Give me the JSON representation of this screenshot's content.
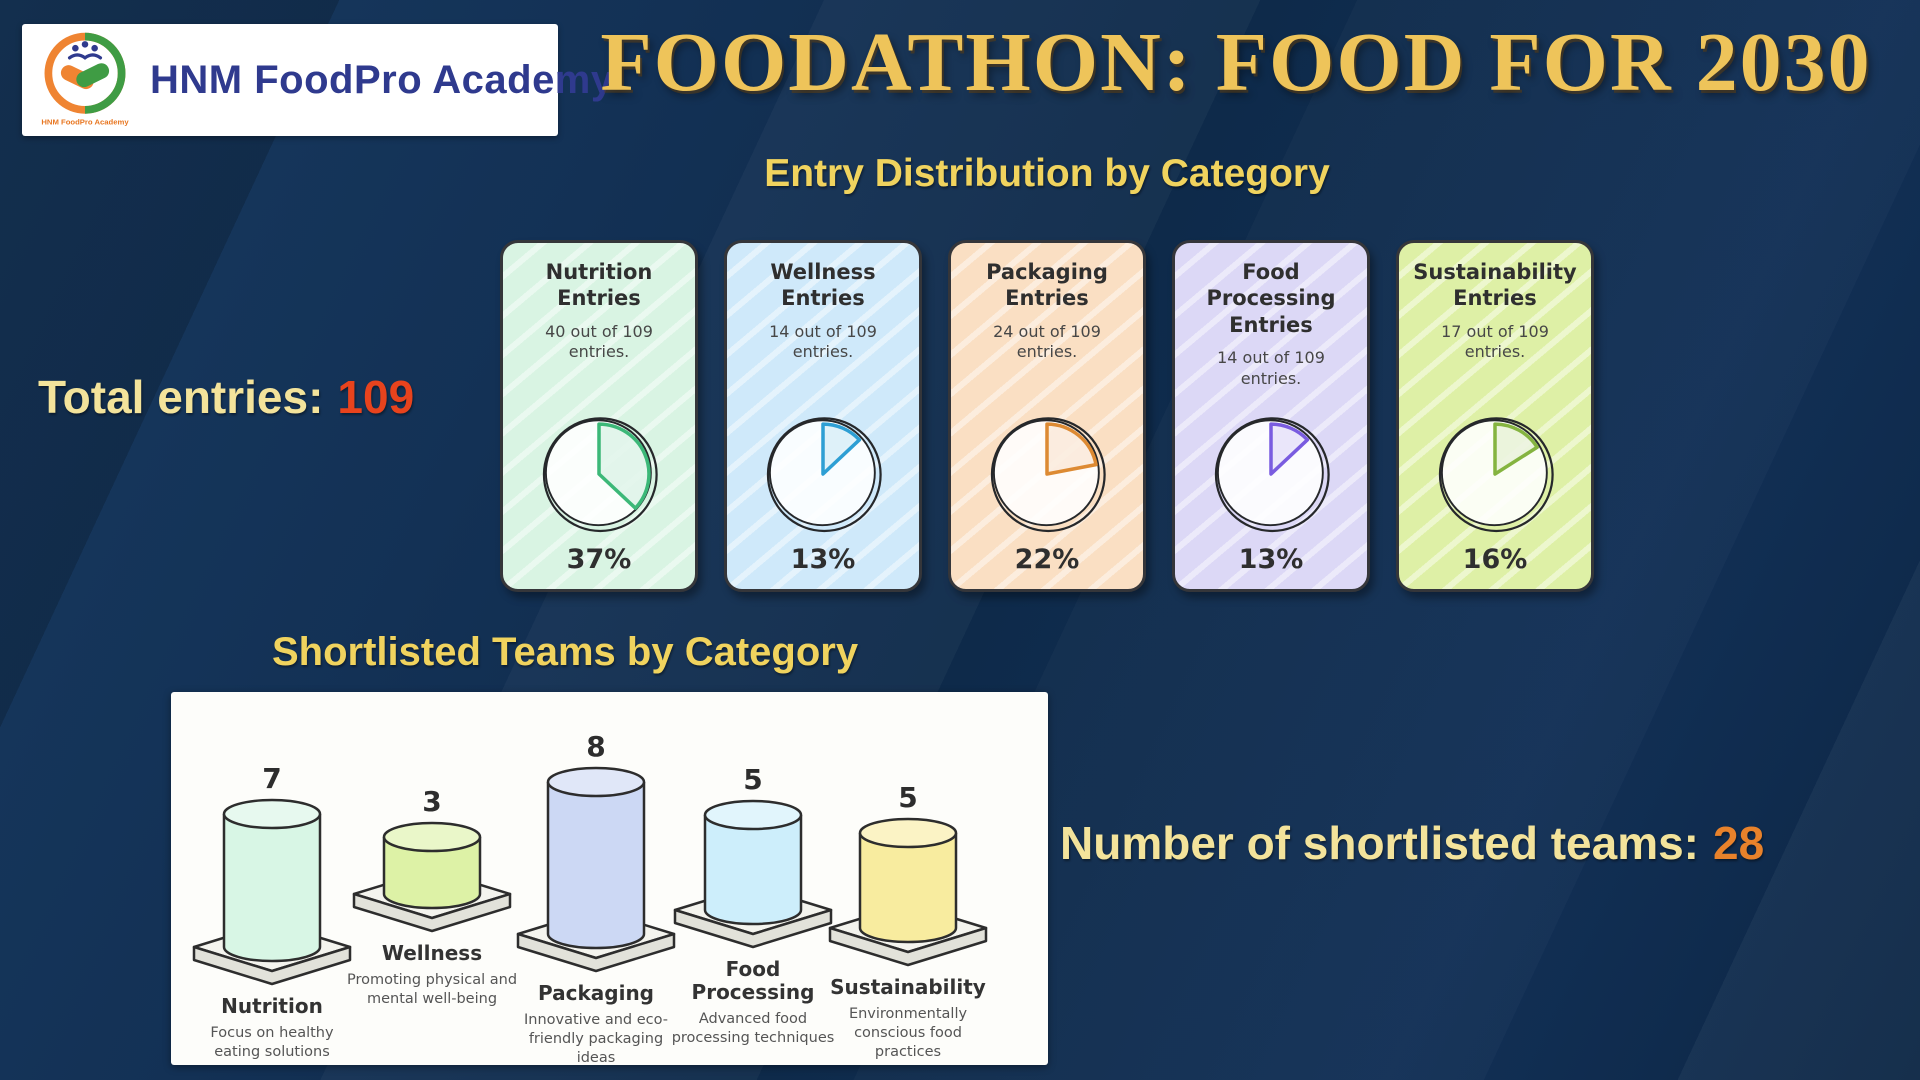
{
  "header": {
    "logo": {
      "org_name": "HNM FoodPro Academy",
      "emblem_caption": "HNM FoodPro Academy",
      "brand_color": "#2f3a8e"
    },
    "title": "FOODATHON: FOOD FOR 2030",
    "title_color": "#eec45a"
  },
  "sections": {
    "entries": {
      "heading": "Entry Distribution by Category",
      "total_label": "Total entries:",
      "total_value": "109",
      "total_value_color": "#e8431d"
    },
    "shortlisted": {
      "heading": "Shortlisted Teams by Category",
      "count_label": "Number of shortlisted teams:",
      "count_value": "28",
      "count_value_color": "#e8822b"
    }
  },
  "chart_data": [
    {
      "type": "pie",
      "title": "Entry Distribution by Category",
      "total_entries": 109,
      "legend_position": "none",
      "cards": [
        {
          "title": "Nutrition Entries",
          "subtitle": "40 out of 109 entries.",
          "value": 40,
          "percent": 37,
          "percent_label": "37%",
          "bg": "#d9f4e3",
          "accent": "#3cb878"
        },
        {
          "title": "Wellness Entries",
          "subtitle": "14 out of 109 entries.",
          "value": 14,
          "percent": 13,
          "percent_label": "13%",
          "bg": "#cfe9fa",
          "accent": "#2e9fd4"
        },
        {
          "title": "Packaging Entries",
          "subtitle": "24 out of 109 entries.",
          "value": 24,
          "percent": 22,
          "percent_label": "22%",
          "bg": "#fadfc3",
          "accent": "#dd8a33"
        },
        {
          "title": "Food Processing Entries",
          "subtitle": "14 out of 109 entries.",
          "value": 14,
          "percent": 13,
          "percent_label": "13%",
          "bg": "#dcd8f6",
          "accent": "#7a5ce0"
        },
        {
          "title": "Sustainability Entries",
          "subtitle": "17 out of 109 entries.",
          "value": 17,
          "percent": 16,
          "percent_label": "16%",
          "bg": "#def0a6",
          "accent": "#85b440"
        }
      ]
    },
    {
      "type": "bar",
      "title": "Shortlisted Teams by Category",
      "total_teams": 28,
      "categories": [
        "Nutrition",
        "Wellness",
        "Packaging",
        "Food Processing",
        "Sustainability"
      ],
      "values": [
        7,
        3,
        8,
        5,
        5
      ],
      "descriptions": [
        "Focus on healthy eating solutions",
        "Promoting physical and mental well-being",
        "Innovative and eco-friendly packaging ideas",
        "Advanced food processing techniques",
        "Environmentally conscious food practices"
      ],
      "colors": [
        "#d8f6e5",
        "#ddf2a6",
        "#ccd8f4",
        "#cdeefb",
        "#f8ec9f"
      ],
      "ylim": [
        0,
        8
      ],
      "grid": false
    }
  ]
}
